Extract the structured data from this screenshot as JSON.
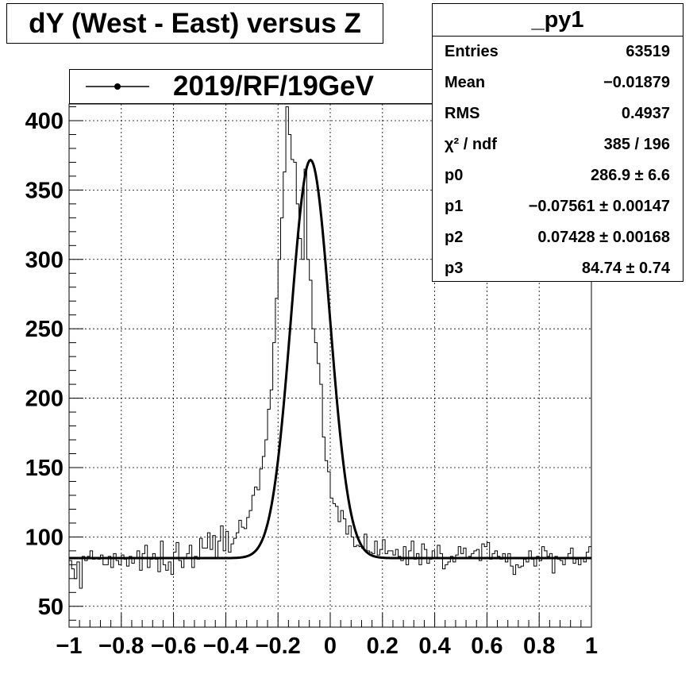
{
  "title": "dY (West - East) versus Z",
  "legend": {
    "label": "2019/RF/19GeV"
  },
  "stats": {
    "name": "_py1",
    "rows": [
      {
        "label": "Entries",
        "value": "63519"
      },
      {
        "label": "Mean",
        "value": "−0.01879"
      },
      {
        "label": "RMS",
        "value": "0.4937"
      },
      {
        "label": "χ² / ndf",
        "value": "385 / 196"
      },
      {
        "label": "p0",
        "value": "286.9 ± 6.6"
      },
      {
        "label": "p1",
        "value": "−0.07561 ± 0.00147"
      },
      {
        "label": "p2",
        "value": "0.07428 ± 0.00168"
      },
      {
        "label": "p3",
        "value": "84.74 ± 0.74"
      }
    ]
  },
  "chart_data": {
    "type": "line",
    "title": "dY (West - East) versus Z",
    "xlabel": "",
    "ylabel": "",
    "xlim": [
      -1,
      1
    ],
    "ylim": [
      35,
      412
    ],
    "grid": true,
    "legend_position": "top-left",
    "x_ticks": [
      "−1",
      "−0.8",
      "−0.6",
      "−0.4",
      "−0.2",
      "0",
      "0.2",
      "0.4",
      "0.6",
      "0.8",
      "1"
    ],
    "x_tick_values": [
      -1,
      -0.8,
      -0.6,
      -0.4,
      -0.2,
      0,
      0.2,
      0.4,
      0.6,
      0.8,
      1
    ],
    "y_ticks": [
      "50",
      "100",
      "150",
      "200",
      "250",
      "300",
      "350",
      "400"
    ],
    "y_tick_values": [
      50,
      100,
      150,
      200,
      250,
      300,
      350,
      400
    ],
    "series": [
      {
        "name": "2019/RF/19GeV",
        "kind": "histogram",
        "bin_range": [
          -1,
          1
        ],
        "values": [
          83,
          77,
          70,
          82,
          63,
          86,
          83,
          86,
          90,
          84,
          85,
          84,
          87,
          80,
          80,
          86,
          78,
          88,
          83,
          80,
          87,
          84,
          79,
          86,
          81,
          85,
          90,
          76,
          88,
          94,
          78,
          84,
          88,
          84,
          75,
          97,
          80,
          76,
          82,
          73,
          89,
          96,
          83,
          78,
          85,
          88,
          94,
          78,
          86,
          84,
          99,
          92,
          92,
          103,
          91,
          101,
          85,
          97,
          108,
          90,
          104,
          89,
          95,
          99,
          103,
          112,
          107,
          106,
          114,
          119,
          130,
          136,
          134,
          149,
          158,
          170,
          192,
          206,
          240,
          272,
          300,
          330,
          363,
          410,
          390,
          372,
          370,
          340,
          315,
          300,
          365,
          300,
          285,
          250,
          240,
          225,
          210,
          172,
          155,
          147,
          128,
          124,
          122,
          111,
          119,
          113,
          102,
          108,
          100,
          93,
          94,
          93,
          92,
          102,
          90,
          89,
          88,
          97,
          87,
          91,
          98,
          88,
          90,
          90,
          87,
          91,
          86,
          83,
          93,
          80,
          90,
          97,
          84,
          88,
          80,
          95,
          91,
          81,
          84,
          90,
          85,
          94,
          88,
          77,
          80,
          82,
          86,
          82,
          87,
          93,
          88,
          92,
          85,
          86,
          88,
          90,
          91,
          83,
          95,
          93,
          96,
          84,
          88,
          90,
          86,
          84,
          88,
          82,
          88,
          79,
          73,
          80,
          78,
          79,
          84,
          82,
          90,
          84,
          79,
          86,
          83,
          93,
          90,
          86,
          88,
          74,
          86,
          84,
          83,
          80,
          85,
          88,
          92,
          81,
          84,
          80,
          85,
          82,
          89,
          93
        ]
      },
      {
        "name": "fit",
        "kind": "curve",
        "formula": "gaus + pol0",
        "params": {
          "p0": 286.9,
          "p1": -0.07561,
          "p2": 0.07428,
          "p3": 84.74
        }
      }
    ]
  },
  "colors": {
    "line": "#000000",
    "background": "#ffffff",
    "grid": "#000000"
  }
}
